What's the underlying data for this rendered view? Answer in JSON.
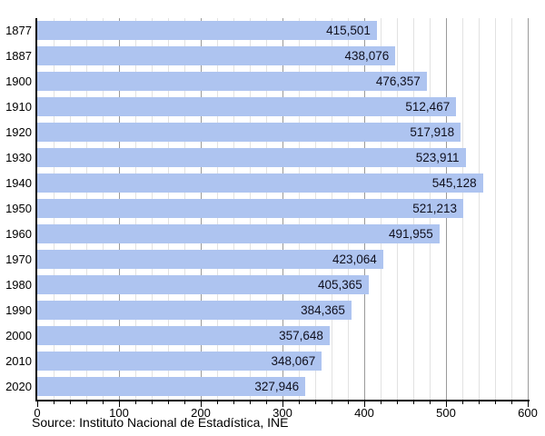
{
  "colors": {
    "bar": "#aec4f0",
    "bar_label": "#10101e",
    "grid_minor": "#e2e2e2",
    "grid_major": "#9a9a9a",
    "axis": "#000000"
  },
  "chart_data": {
    "type": "bar",
    "orientation": "horizontal",
    "title": "",
    "xlabel": "",
    "ylabel": "",
    "categories": [
      "1877",
      "1887",
      "1900",
      "1910",
      "1920",
      "1930",
      "1940",
      "1950",
      "1960",
      "1970",
      "1980",
      "1990",
      "2000",
      "2010",
      "2020"
    ],
    "values": [
      415501,
      438076,
      476357,
      512467,
      517918,
      523911,
      545128,
      521213,
      491955,
      423064,
      405365,
      384365,
      357648,
      348067,
      327946
    ],
    "value_labels": [
      "415,501",
      "438,076",
      "476,357",
      "512,467",
      "517,918",
      "523,911",
      "545,128",
      "521,213",
      "491,955",
      "423,064",
      "405,365",
      "384,365",
      "357,648",
      "348,067",
      "327,946"
    ],
    "xlim": [
      0,
      600
    ],
    "x_axis_unit_divisor": 1000,
    "x_major_tick_step": 100,
    "x_minor_tick_step": 20,
    "x_major_tick_labels": [
      "0",
      "100",
      "200",
      "300",
      "400",
      "500",
      "600"
    ],
    "grid": true,
    "legend": "none",
    "source": "Source: Instituto Nacional de Estadística, INE"
  }
}
